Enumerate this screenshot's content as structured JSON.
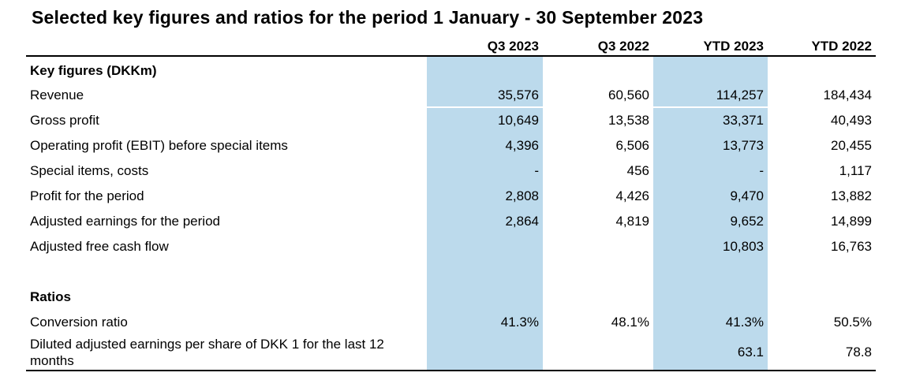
{
  "title": "Selected key figures and ratios for the period 1 January - 30 September 2023",
  "table": {
    "highlight_color": "#bcdaec",
    "highlighted_columns": [
      "Q3 2023",
      "YTD 2023"
    ],
    "columns": [
      "Q3 2023",
      "Q3 2022",
      "YTD 2023",
      "YTD 2022"
    ],
    "rows": [
      {
        "label": "Key figures (DKKm)",
        "values": [
          "",
          "",
          "",
          ""
        ]
      },
      {
        "label": "Revenue",
        "values": [
          "35,576",
          "60,560",
          "114,257",
          "184,434"
        ]
      },
      {
        "label": "Gross profit",
        "values": [
          "10,649",
          "13,538",
          "33,371",
          "40,493"
        ]
      },
      {
        "label": "Operating profit (EBIT) before special items",
        "values": [
          "4,396",
          "6,506",
          "13,773",
          "20,455"
        ]
      },
      {
        "label": "Special items, costs",
        "values": [
          "-",
          "456",
          "-",
          "1,117"
        ]
      },
      {
        "label": "Profit for the period",
        "values": [
          "2,808",
          "4,426",
          "9,470",
          "13,882"
        ]
      },
      {
        "label": "Adjusted earnings for the period",
        "values": [
          "2,864",
          "4,819",
          "9,652",
          "14,899"
        ]
      },
      {
        "label": "Adjusted free cash flow",
        "values": [
          "",
          "",
          "10,803",
          "16,763"
        ]
      },
      {
        "label": "",
        "values": [
          "",
          "",
          "",
          ""
        ]
      },
      {
        "label": "Ratios",
        "values": [
          "",
          "",
          "",
          ""
        ]
      },
      {
        "label": "Conversion ratio",
        "values": [
          "41.3%",
          "48.1%",
          "41.3%",
          "50.5%"
        ]
      },
      {
        "label": "Diluted adjusted earnings per share of DKK 1 for the last 12 months",
        "values": [
          "",
          "",
          "63.1",
          "78.8"
        ]
      }
    ]
  }
}
